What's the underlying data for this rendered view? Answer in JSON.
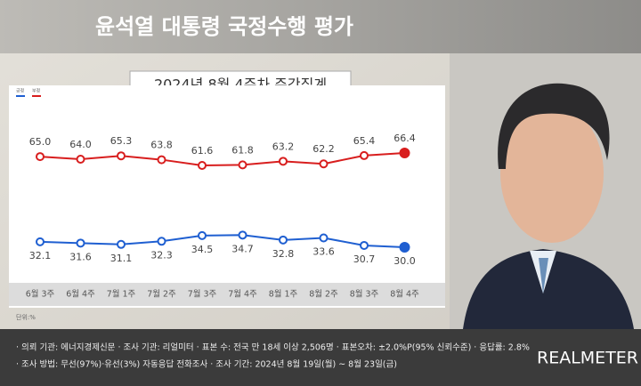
{
  "chart_data": {
    "type": "line",
    "title": "윤석열 대통령 국정수행 평가",
    "subtitle": "2024년 8월 4주차 주간집계",
    "unit_label": "단위:%",
    "categories": [
      "6월 3주",
      "6월 4주",
      "7월 1주",
      "7월 2주",
      "7월 3주",
      "7월 4주",
      "8월 1주",
      "8월 2주",
      "8월 3주",
      "8월 4주"
    ],
    "series": [
      {
        "name": "긍정",
        "color": "#1f5fd1",
        "values": [
          32.1,
          31.6,
          31.1,
          32.3,
          34.5,
          34.7,
          32.8,
          33.6,
          30.7,
          30.0
        ],
        "value_labels": [
          "32.1",
          "31.6",
          "31.1",
          "32.3",
          "34.5",
          "34.7",
          "32.8",
          "33.6",
          "30.7",
          "30.0"
        ]
      },
      {
        "name": "부정",
        "color": "#d81e1e",
        "values": [
          65.0,
          64.0,
          65.3,
          63.8,
          61.6,
          61.8,
          63.2,
          62.2,
          65.4,
          66.4
        ],
        "value_labels": [
          "65.0",
          "64.0",
          "65.3",
          "63.8",
          "61.6",
          "61.8",
          "63.2",
          "62.2",
          "65.4",
          "66.4"
        ]
      }
    ]
  },
  "footer": {
    "lines": [
      "· 의뢰 기관: 에너지경제신문 · 조사 기관: 리얼미터 · 표본 수: 전국 만 18세 이상 2,506명 · 표본오차: ±2.0%P(95% 신뢰수준) · 응답률: 2.8%",
      "· 조사 방법: 무선(97%)·유선(3%) 자동응답 전화조사 · 조사 기간: 2024년 8월 19일(월) ~ 8월 23일(금)"
    ],
    "brand": "REALMETER"
  }
}
